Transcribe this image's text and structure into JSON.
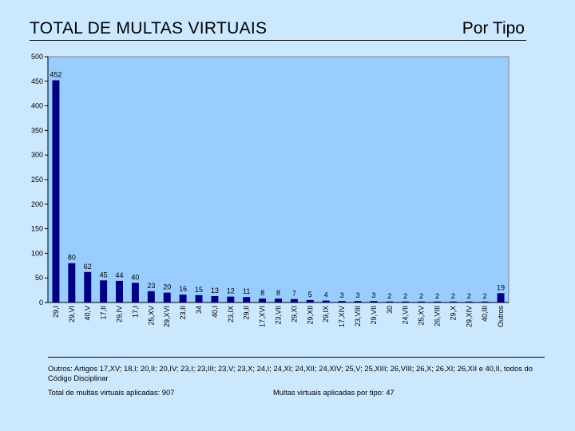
{
  "header": {
    "title": "TOTAL DE MULTAS VIRTUAIS",
    "subtitle": "Por Tipo"
  },
  "chart_data": {
    "type": "bar",
    "title": "TOTAL DE MULTAS VIRTUAIS",
    "subtitle": "Por Tipo",
    "xlabel": "",
    "ylabel": "",
    "ylim": [
      0,
      500
    ],
    "yticks": [
      0,
      50,
      100,
      150,
      200,
      250,
      300,
      350,
      400,
      450,
      500
    ],
    "grid": false,
    "categories": [
      "29,I",
      "29,VI",
      "40,V",
      "17,II",
      "29,IV",
      "17,I",
      "25,XV",
      "29,XVI",
      "23,II",
      "34",
      "40,I",
      "23,IX",
      "29,II",
      "17,XVI",
      "23,VII",
      "29,XI",
      "29,XII",
      "29,IX",
      "17,XIV",
      "23,VIII",
      "29,VII",
      "30",
      "24,VII",
      "25,XV",
      "26,VIII",
      "29,X",
      "29,XIV",
      "40,III",
      "Outros"
    ],
    "values": [
      452,
      80,
      62,
      45,
      44,
      40,
      23,
      20,
      16,
      15,
      13,
      12,
      11,
      8,
      8,
      7,
      5,
      4,
      3,
      3,
      3,
      2,
      2,
      2,
      2,
      2,
      2,
      2,
      19
    ],
    "colors": {
      "bar": "#000080",
      "plot_bg": "#99ccff",
      "plot_border": "#808080"
    }
  },
  "footer": {
    "others_note": "Outros: Artigos 17,XV; 18,I; 20,II; 20,IV; 23,I; 23,III; 23,V; 23,X; 24,I; 24,XI; 24,XII; 24,XIV; 25,V; 25,XIII; 26,VIII; 26,X; 26,XI; 26,XII e 40,II, todos do Código Disciplinar",
    "total_text": "Total de multas virtuais aplicadas: 907",
    "types_text": "Multas virtuais aplicadas por tipo: 47"
  }
}
